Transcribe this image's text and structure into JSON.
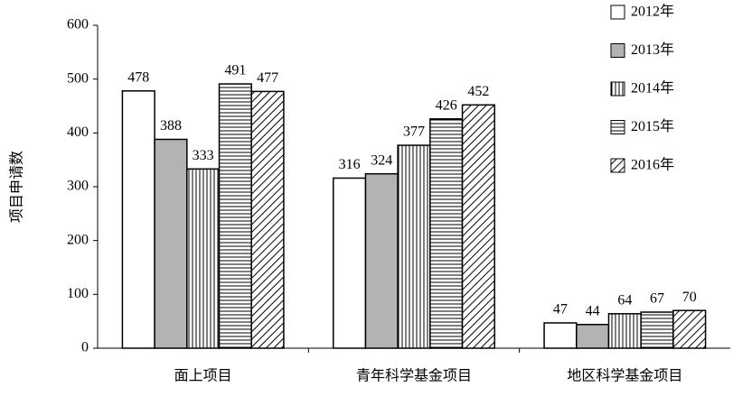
{
  "chart_data": {
    "type": "bar",
    "y_label": "项目申请数",
    "categories": [
      "面上项目",
      "青年科学基金项目",
      "地区科学基金项目"
    ],
    "series": [
      {
        "name": "2012年",
        "color": "#ffffff",
        "values": [
          478,
          316,
          47
        ]
      },
      {
        "name": "2013年",
        "color": "#b3b3b3",
        "values": [
          388,
          324,
          44
        ]
      },
      {
        "name": "2014年",
        "color": "#ffffff",
        "pattern": "vertical",
        "values": [
          333,
          377,
          64
        ]
      },
      {
        "name": "2015年",
        "color": "#ffffff",
        "pattern": "horizontal",
        "values": [
          491,
          426,
          67
        ]
      },
      {
        "name": "2016年",
        "color": "#ffffff",
        "pattern": "diagonal",
        "values": [
          477,
          452,
          70
        ]
      }
    ],
    "ylim": [
      0,
      600
    ],
    "yticks": [
      0,
      100,
      200,
      300,
      400,
      500,
      600
    ],
    "legend": "top-right"
  }
}
